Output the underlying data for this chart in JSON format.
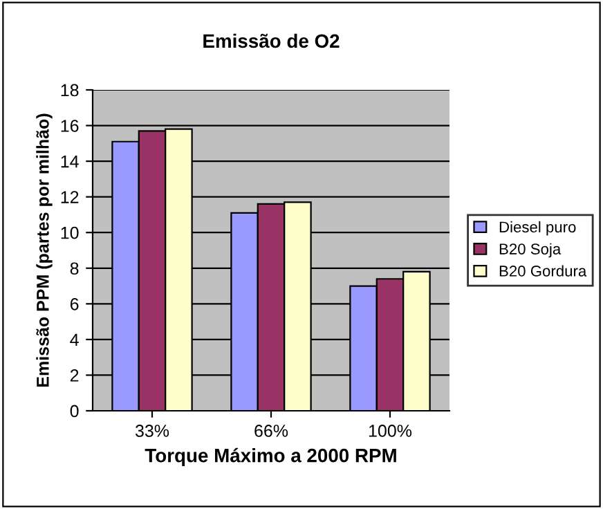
{
  "chart_data": {
    "type": "bar",
    "title": "Emissão de O2",
    "xlabel": "Torque Máximo a 2000 RPM",
    "ylabel": "Emissão PPM (partes por milhão)",
    "categories": [
      "33%",
      "66%",
      "100%"
    ],
    "series": [
      {
        "name": "Diesel puro",
        "color": "#9999ff",
        "values": [
          15.1,
          11.1,
          7.0
        ]
      },
      {
        "name": "B20 Soja",
        "color": "#993366",
        "values": [
          15.7,
          11.6,
          7.4
        ]
      },
      {
        "name": "B20 Gordura",
        "color": "#ffffcc",
        "values": [
          15.8,
          11.7,
          7.8
        ]
      }
    ],
    "ylim": [
      0,
      18
    ],
    "yticks": [
      0,
      2,
      4,
      6,
      8,
      10,
      12,
      14,
      16,
      18
    ],
    "grid": "y",
    "legend": "right"
  }
}
